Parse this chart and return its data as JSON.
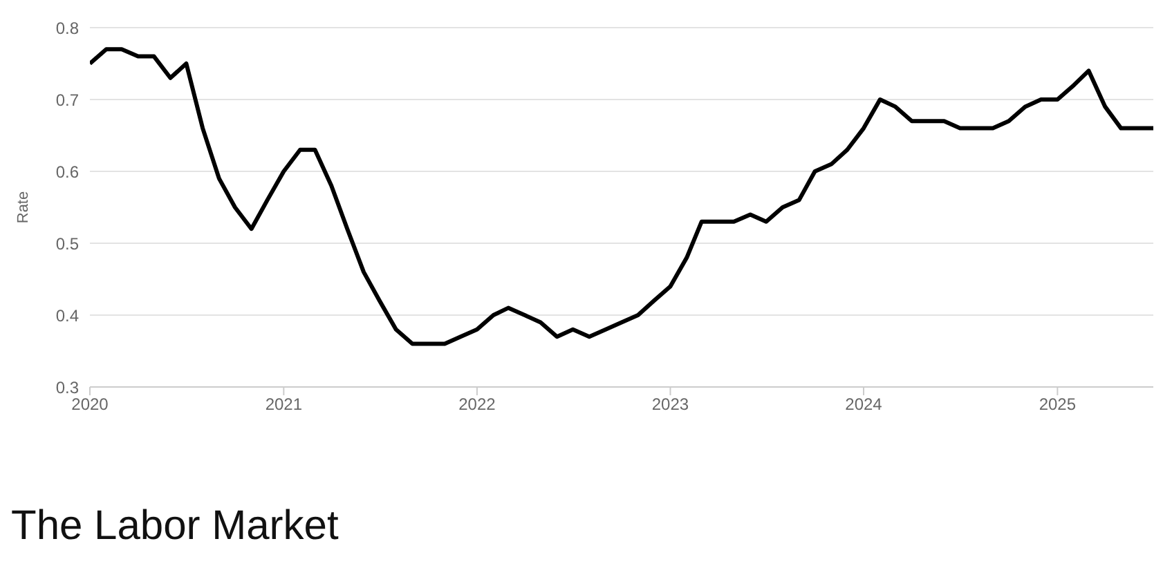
{
  "chart_data": {
    "type": "line",
    "ylabel": "Rate",
    "x": [
      "2020-01",
      "2020-02",
      "2020-03",
      "2020-04",
      "2020-05",
      "2020-06",
      "2020-07",
      "2020-08",
      "2020-09",
      "2020-10",
      "2020-11",
      "2020-12",
      "2021-01",
      "2021-02",
      "2021-03",
      "2021-04",
      "2021-05",
      "2021-06",
      "2021-07",
      "2021-08",
      "2021-09",
      "2021-10",
      "2021-11",
      "2021-12",
      "2022-01",
      "2022-02",
      "2022-03",
      "2022-04",
      "2022-05",
      "2022-06",
      "2022-07",
      "2022-08",
      "2022-09",
      "2022-10",
      "2022-11",
      "2022-12",
      "2023-01",
      "2023-02",
      "2023-03",
      "2023-04",
      "2023-05",
      "2023-06",
      "2023-07",
      "2023-08",
      "2023-09",
      "2023-10",
      "2023-11",
      "2023-12",
      "2024-01",
      "2024-02",
      "2024-03",
      "2024-04",
      "2024-05",
      "2024-06",
      "2024-07",
      "2024-08",
      "2024-09",
      "2024-10",
      "2024-11",
      "2024-12",
      "2025-01",
      "2025-02",
      "2025-03",
      "2025-04",
      "2025-05",
      "2025-06",
      "2025-07"
    ],
    "series": [
      {
        "color": "#000000",
        "values": [
          0.75,
          0.77,
          0.77,
          0.76,
          0.76,
          0.73,
          0.75,
          0.66,
          0.59,
          0.55,
          0.52,
          0.56,
          0.6,
          0.63,
          0.63,
          0.58,
          0.52,
          0.46,
          0.42,
          0.38,
          0.36,
          0.36,
          0.36,
          0.37,
          0.38,
          0.4,
          0.41,
          0.4,
          0.39,
          0.37,
          0.38,
          0.37,
          0.38,
          0.39,
          0.4,
          0.42,
          0.44,
          0.48,
          0.53,
          0.53,
          0.53,
          0.54,
          0.53,
          0.55,
          0.56,
          0.6,
          0.61,
          0.63,
          0.66,
          0.7,
          0.69,
          0.67,
          0.67,
          0.67,
          0.66,
          0.66,
          0.66,
          0.67,
          0.69,
          0.7,
          0.7,
          0.72,
          0.74,
          0.69,
          0.66,
          0.66,
          0.66
        ]
      }
    ],
    "xlim": [
      "2020-01",
      "2025-07"
    ],
    "xticks": [
      "2020",
      "2021",
      "2022",
      "2023",
      "2024",
      "2025"
    ],
    "ylim": [
      0.3,
      0.8
    ],
    "yticks": [
      0.3,
      0.4,
      0.5,
      0.6,
      0.7,
      0.8
    ],
    "grid": "y",
    "legend": false,
    "marker": "none",
    "line_style": "solid",
    "annotations": [
      "The Labor Market"
    ]
  }
}
